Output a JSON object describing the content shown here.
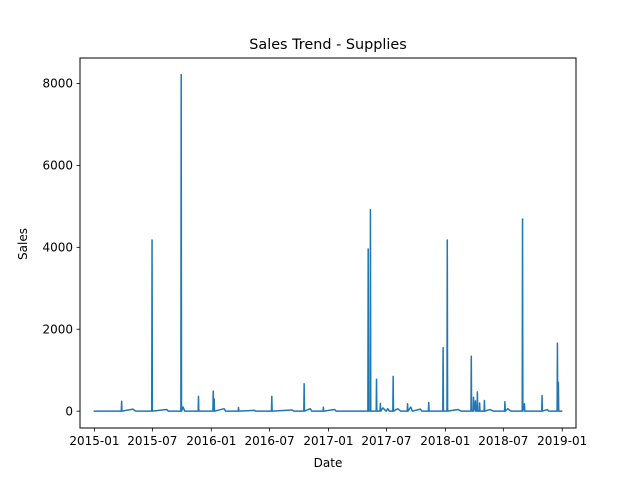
{
  "chart_data": {
    "type": "line",
    "title": "Sales Trend - Supplies",
    "xlabel": "Date",
    "ylabel": "Sales",
    "x_type": "date",
    "xlim": [
      "2014-11-17",
      "2019-02-13"
    ],
    "ylim": [
      -411,
      8622
    ],
    "x_ticks": [
      {
        "date": "2015-01-01",
        "label": "2015-01"
      },
      {
        "date": "2015-07-01",
        "label": "2015-07"
      },
      {
        "date": "2016-01-01",
        "label": "2016-01"
      },
      {
        "date": "2016-07-01",
        "label": "2016-07"
      },
      {
        "date": "2017-01-01",
        "label": "2017-01"
      },
      {
        "date": "2017-07-01",
        "label": "2017-07"
      },
      {
        "date": "2018-01-01",
        "label": "2018-01"
      },
      {
        "date": "2018-07-01",
        "label": "2018-07"
      },
      {
        "date": "2019-01-01",
        "label": "2019-01"
      }
    ],
    "y_ticks": [
      0,
      2000,
      4000,
      6000,
      8000
    ],
    "grid": false,
    "series": [
      {
        "color": "#1f77b4",
        "points": [
          [
            "2015-01-01",
            0
          ],
          [
            "2015-03-26",
            0
          ],
          [
            "2015-03-27",
            240
          ],
          [
            "2015-03-28",
            0
          ],
          [
            "2015-05-01",
            50
          ],
          [
            "2015-05-10",
            0
          ],
          [
            "2015-06-29",
            0
          ],
          [
            "2015-06-30",
            4180
          ],
          [
            "2015-07-01",
            0
          ],
          [
            "2015-08-15",
            40
          ],
          [
            "2015-08-20",
            0
          ],
          [
            "2015-09-28",
            0
          ],
          [
            "2015-09-29",
            8220
          ],
          [
            "2015-09-30",
            0
          ],
          [
            "2015-10-05",
            100
          ],
          [
            "2015-10-10",
            0
          ],
          [
            "2015-11-21",
            0
          ],
          [
            "2015-11-22",
            360
          ],
          [
            "2015-11-23",
            0
          ],
          [
            "2016-01-06",
            0
          ],
          [
            "2016-01-07",
            490
          ],
          [
            "2016-01-09",
            0
          ],
          [
            "2016-01-10",
            300
          ],
          [
            "2016-01-11",
            0
          ],
          [
            "2016-02-10",
            60
          ],
          [
            "2016-02-15",
            0
          ],
          [
            "2016-03-25",
            0
          ],
          [
            "2016-03-26",
            90
          ],
          [
            "2016-03-27",
            0
          ],
          [
            "2016-05-15",
            20
          ],
          [
            "2016-05-20",
            0
          ],
          [
            "2016-07-07",
            0
          ],
          [
            "2016-07-08",
            360
          ],
          [
            "2016-07-09",
            0
          ],
          [
            "2016-09-10",
            30
          ],
          [
            "2016-09-15",
            0
          ],
          [
            "2016-10-16",
            0
          ],
          [
            "2016-10-17",
            670
          ],
          [
            "2016-10-18",
            0
          ],
          [
            "2016-11-05",
            60
          ],
          [
            "2016-11-10",
            0
          ],
          [
            "2016-12-15",
            0
          ],
          [
            "2016-12-16",
            100
          ],
          [
            "2016-12-17",
            0
          ],
          [
            "2017-01-20",
            40
          ],
          [
            "2017-01-25",
            0
          ],
          [
            "2017-05-04",
            0
          ],
          [
            "2017-05-05",
            3960
          ],
          [
            "2017-05-06",
            0
          ],
          [
            "2017-05-11",
            0
          ],
          [
            "2017-05-12",
            4920
          ],
          [
            "2017-05-13",
            0
          ],
          [
            "2017-05-30",
            0
          ],
          [
            "2017-05-31",
            780
          ],
          [
            "2017-06-01",
            0
          ],
          [
            "2017-06-11",
            0
          ],
          [
            "2017-06-12",
            190
          ],
          [
            "2017-06-13",
            0
          ],
          [
            "2017-06-20",
            80
          ],
          [
            "2017-06-30",
            0
          ],
          [
            "2017-07-05",
            60
          ],
          [
            "2017-07-10",
            0
          ],
          [
            "2017-07-21",
            0
          ],
          [
            "2017-07-22",
            850
          ],
          [
            "2017-07-23",
            0
          ],
          [
            "2017-08-05",
            60
          ],
          [
            "2017-08-15",
            0
          ],
          [
            "2017-09-04",
            0
          ],
          [
            "2017-09-05",
            180
          ],
          [
            "2017-09-06",
            0
          ],
          [
            "2017-09-15",
            100
          ],
          [
            "2017-09-20",
            0
          ],
          [
            "2017-10-15",
            50
          ],
          [
            "2017-10-20",
            0
          ],
          [
            "2017-11-09",
            0
          ],
          [
            "2017-11-10",
            210
          ],
          [
            "2017-11-11",
            0
          ],
          [
            "2017-12-24",
            0
          ],
          [
            "2017-12-25",
            1550
          ],
          [
            "2017-12-26",
            0
          ],
          [
            "2018-01-06",
            0
          ],
          [
            "2018-01-07",
            4180
          ],
          [
            "2018-01-08",
            0
          ],
          [
            "2018-02-10",
            40
          ],
          [
            "2018-02-20",
            0
          ],
          [
            "2018-03-22",
            0
          ],
          [
            "2018-03-23",
            1340
          ],
          [
            "2018-03-24",
            0
          ],
          [
            "2018-03-29",
            0
          ],
          [
            "2018-03-30",
            340
          ],
          [
            "2018-03-31",
            0
          ],
          [
            "2018-04-05",
            250
          ],
          [
            "2018-04-06",
            0
          ],
          [
            "2018-04-10",
            0
          ],
          [
            "2018-04-11",
            470
          ],
          [
            "2018-04-12",
            0
          ],
          [
            "2018-04-17",
            0
          ],
          [
            "2018-04-18",
            200
          ],
          [
            "2018-04-19",
            0
          ],
          [
            "2018-05-02",
            0
          ],
          [
            "2018-05-03",
            260
          ],
          [
            "2018-05-04",
            0
          ],
          [
            "2018-05-20",
            40
          ],
          [
            "2018-06-01",
            0
          ],
          [
            "2018-07-05",
            0
          ],
          [
            "2018-07-06",
            230
          ],
          [
            "2018-07-07",
            0
          ],
          [
            "2018-07-15",
            60
          ],
          [
            "2018-07-25",
            0
          ],
          [
            "2018-08-29",
            0
          ],
          [
            "2018-08-30",
            4690
          ],
          [
            "2018-08-31",
            0
          ],
          [
            "2018-09-05",
            180
          ],
          [
            "2018-09-06",
            0
          ],
          [
            "2018-10-29",
            0
          ],
          [
            "2018-10-30",
            380
          ],
          [
            "2018-10-31",
            0
          ],
          [
            "2018-11-15",
            40
          ],
          [
            "2018-11-20",
            0
          ],
          [
            "2018-12-16",
            0
          ],
          [
            "2018-12-17",
            1660
          ],
          [
            "2018-12-18",
            0
          ],
          [
            "2018-12-19",
            0
          ],
          [
            "2018-12-20",
            700
          ],
          [
            "2018-12-21",
            0
          ],
          [
            "2018-12-30",
            0
          ]
        ]
      }
    ]
  }
}
